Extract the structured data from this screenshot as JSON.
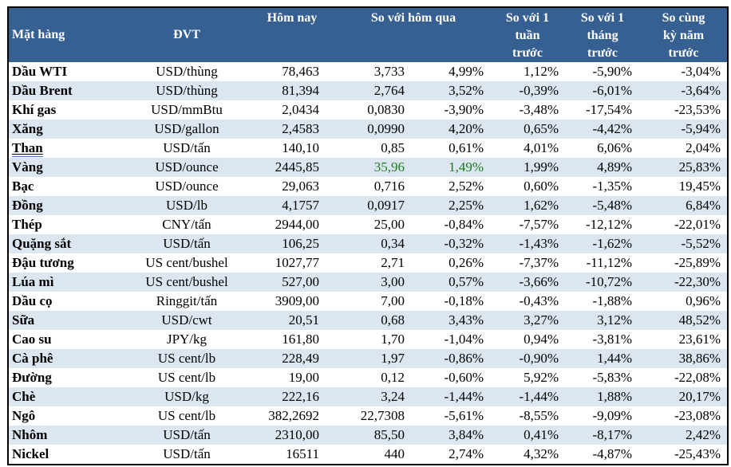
{
  "table": {
    "headers": {
      "commodity": "Mặt hàng",
      "unit": "ĐVT",
      "today": "Hôm nay",
      "vs_yesterday": "So với hôm qua",
      "vs_week": "So với 1\ntuần\ntrước",
      "vs_month": "So với 1\ntháng\ntrước",
      "vs_year": "So cùng\nkỳ năm\ntrước"
    },
    "rows": [
      {
        "name": "Dầu WTI",
        "unit": "USD/thùng",
        "today": "78,463",
        "change": "3,733",
        "change_pct": "4,99%",
        "week": "1,12%",
        "month": "-5,90%",
        "year": "-3,04%",
        "green": false,
        "underline": false
      },
      {
        "name": "Dầu Brent",
        "unit": "USD/thùng",
        "today": "81,394",
        "change": "2,764",
        "change_pct": "3,52%",
        "week": "-0,39%",
        "month": "-6,01%",
        "year": "-3,64%",
        "green": false,
        "underline": false
      },
      {
        "name": "Khí gas",
        "unit": "USD/mmBtu",
        "today": "2,0434",
        "change": "0,0830",
        "change_pct": "-3,90%",
        "week": "-3,48%",
        "month": "-17,54%",
        "year": "-23,53%",
        "green": false,
        "underline": false
      },
      {
        "name": "Xăng",
        "unit": "USD/gallon",
        "today": "2,4583",
        "change": "0,0990",
        "change_pct": "4,20%",
        "week": "0,65%",
        "month": "-4,42%",
        "year": "-5,94%",
        "green": false,
        "underline": false
      },
      {
        "name": "Than",
        "unit": "USD/tấn",
        "today": "140,10",
        "change": "0,85",
        "change_pct": "0,61%",
        "week": "4,01%",
        "month": "6,06%",
        "year": "2,04%",
        "green": false,
        "underline": true
      },
      {
        "name": "Vàng",
        "unit": "USD/ounce",
        "today": "2445,85",
        "change": "35,96",
        "change_pct": "1,49%",
        "week": "1,99%",
        "month": "4,89%",
        "year": "25,83%",
        "green": true,
        "underline": false
      },
      {
        "name": "Bạc",
        "unit": "USD/ounce",
        "today": "29,063",
        "change": "0,716",
        "change_pct": "2,52%",
        "week": "0,60%",
        "month": "-1,35%",
        "year": "19,45%",
        "green": false,
        "underline": false
      },
      {
        "name": "Đồng",
        "unit": "USD/lb",
        "today": "4,1757",
        "change": "0,0917",
        "change_pct": "2,25%",
        "week": "1,62%",
        "month": "-5,48%",
        "year": "6,84%",
        "green": false,
        "underline": false
      },
      {
        "name": "Thép",
        "unit": "CNY/tấn",
        "today": "2944,00",
        "change": "25,00",
        "change_pct": "-0,84%",
        "week": "-7,57%",
        "month": "-12,12%",
        "year": "-22,01%",
        "green": false,
        "underline": false
      },
      {
        "name": "Quặng sắt",
        "unit": "USD/tấn",
        "today": "106,25",
        "change": "0,34",
        "change_pct": "-0,32%",
        "week": "-1,43%",
        "month": "-1,62%",
        "year": "-5,52%",
        "green": false,
        "underline": false
      },
      {
        "name": "Đậu tương",
        "unit": "US cent/bushel",
        "today": "1027,77",
        "change": "2,71",
        "change_pct": "0,26%",
        "week": "-7,37%",
        "month": "-11,12%",
        "year": "-25,89%",
        "green": false,
        "underline": false
      },
      {
        "name": "Lúa mì",
        "unit": "US cent/bushel",
        "today": "527,00",
        "change": "3,00",
        "change_pct": "0,57%",
        "week": "-3,66%",
        "month": "-10,72%",
        "year": "-22,30%",
        "green": false,
        "underline": false
      },
      {
        "name": "Dầu cọ",
        "unit": "Ringgit/tấn",
        "today": "3909,00",
        "change": "7,00",
        "change_pct": "-0,18%",
        "week": "-0,43%",
        "month": "-1,88%",
        "year": "0,96%",
        "green": false,
        "underline": false
      },
      {
        "name": "Sữa",
        "unit": "USD/cwt",
        "today": "20,51",
        "change": "0,68",
        "change_pct": "3,43%",
        "week": "3,27%",
        "month": "3,12%",
        "year": "48,52%",
        "green": false,
        "underline": false
      },
      {
        "name": "Cao su",
        "unit": "JPY/kg",
        "today": "161,80",
        "change": "1,70",
        "change_pct": "-1,04%",
        "week": "0,94%",
        "month": "-3,81%",
        "year": "23,61%",
        "green": false,
        "underline": false
      },
      {
        "name": "Cà phê",
        "unit": "US cent/lb",
        "today": "228,49",
        "change": "1,97",
        "change_pct": "-0,86%",
        "week": "-0,90%",
        "month": "1,44%",
        "year": "38,86%",
        "green": false,
        "underline": false
      },
      {
        "name": "Đường",
        "unit": "US cent/lb",
        "today": "19,00",
        "change": "0,12",
        "change_pct": "-0,60%",
        "week": "5,92%",
        "month": "-5,83%",
        "year": "-22,08%",
        "green": false,
        "underline": false
      },
      {
        "name": "Chè",
        "unit": "USD/kg",
        "today": "222,16",
        "change": "3,24",
        "change_pct": "-1,44%",
        "week": "-1,44%",
        "month": "1,88%",
        "year": "20,17%",
        "green": false,
        "underline": false
      },
      {
        "name": "Ngô",
        "unit": "US cent/lb",
        "today": "382,2692",
        "change": "22,7308",
        "change_pct": "-5,61%",
        "week": "-8,55%",
        "month": "-9,09%",
        "year": "-23,08%",
        "green": false,
        "underline": false
      },
      {
        "name": "Nhôm",
        "unit": "USD/tấn",
        "today": "2310,00",
        "change": "85,50",
        "change_pct": "3,84%",
        "week": "0,41%",
        "month": "-8,17%",
        "year": "2,42%",
        "green": false,
        "underline": false
      },
      {
        "name": "Nickel",
        "unit": "USD/tấn",
        "today": "16511",
        "change": "440",
        "change_pct": "2,74%",
        "week": "4,32%",
        "month": "-4,87%",
        "year": "-25,43%",
        "green": false,
        "underline": false
      }
    ]
  },
  "colors": {
    "header_bg": "#366092",
    "header_text": "#FFFFFF",
    "stripe": "#DCE6F1",
    "highlight_green": "#1F7B1F",
    "border": "#000000",
    "link_underline": "#4472C4"
  }
}
